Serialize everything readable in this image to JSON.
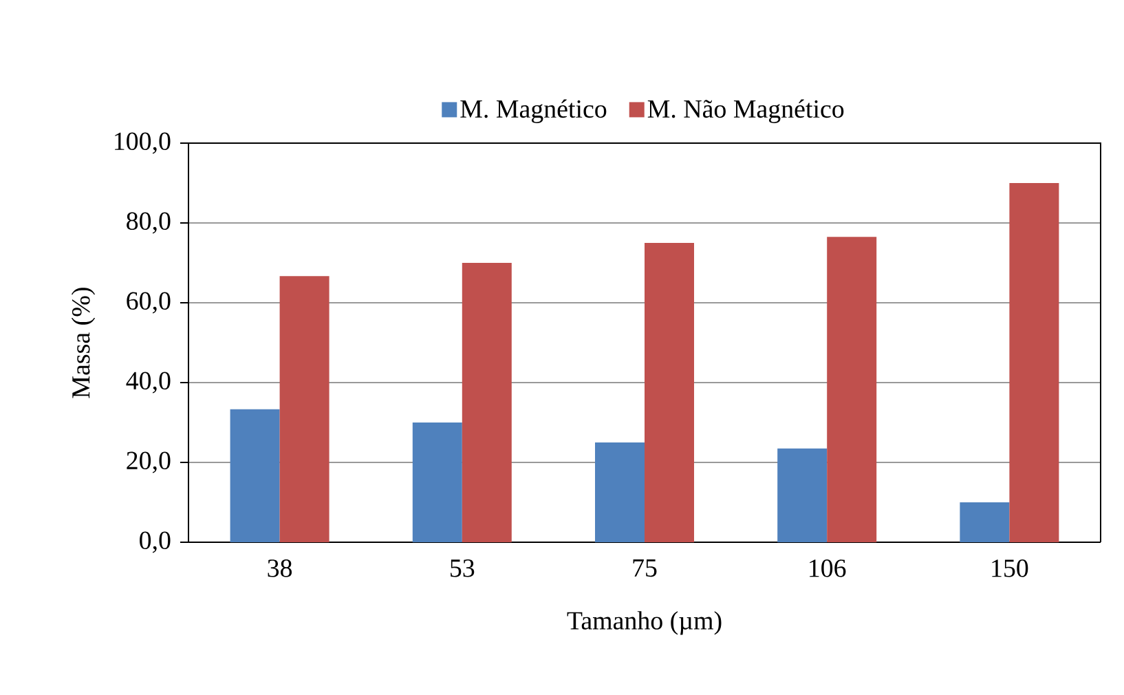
{
  "chart_data": {
    "type": "bar",
    "xlabel": "Tamanho (µm)",
    "ylabel": "Massa (%)",
    "categories": [
      "38",
      "53",
      "75",
      "106",
      "150"
    ],
    "series": [
      {
        "name": "M. Magnético",
        "color": "#4f81bd",
        "values": [
          33.3,
          30,
          25,
          23.5,
          10
        ]
      },
      {
        "name": "M. Não Magnético",
        "color": "#c0504d",
        "values": [
          66.7,
          70,
          75,
          76.5,
          90
        ]
      }
    ],
    "ylim": [
      0,
      100
    ],
    "yticks": [
      {
        "value": 0,
        "label": "0,0"
      },
      {
        "value": 20,
        "label": "20,0"
      },
      {
        "value": 40,
        "label": "40,0"
      },
      {
        "value": 60,
        "label": "60,0"
      },
      {
        "value": 80,
        "label": "80,0"
      },
      {
        "value": 100,
        "label": "100,0"
      }
    ],
    "grid": "y",
    "legend": "top"
  }
}
